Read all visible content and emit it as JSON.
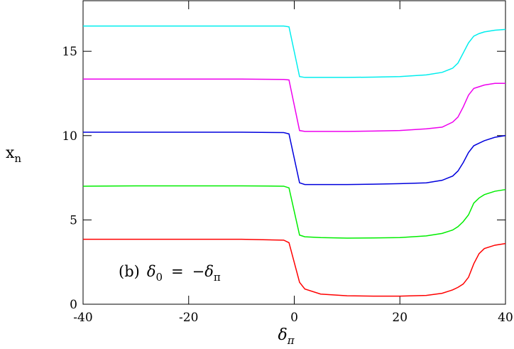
{
  "chart_data": {
    "type": "line",
    "xlabel": {
      "symbol": "δ",
      "subscript": "π"
    },
    "ylabel": {
      "symbol": "x",
      "subscript": "n"
    },
    "annotation": {
      "prefix": "(b)",
      "lhs": "δ",
      "lhs_sub": "0",
      "op": "=",
      "rhs": "−δ",
      "rhs_sub": "π"
    },
    "x": [
      -40,
      -30,
      -20,
      -10,
      -2,
      -1,
      1,
      2,
      5,
      10,
      15,
      20,
      25,
      28,
      30,
      31,
      32,
      33,
      34,
      35,
      36,
      38,
      40
    ],
    "series": [
      {
        "color": "#ff0000",
        "values": [
          3.85,
          3.85,
          3.85,
          3.85,
          3.8,
          3.65,
          1.3,
          0.9,
          0.6,
          0.5,
          0.48,
          0.48,
          0.52,
          0.65,
          0.85,
          1.0,
          1.2,
          1.6,
          2.4,
          3.0,
          3.3,
          3.5,
          3.6
        ]
      },
      {
        "color": "#00ee00",
        "values": [
          7.0,
          7.02,
          7.02,
          7.02,
          7.0,
          6.9,
          4.1,
          4.0,
          3.95,
          3.92,
          3.93,
          3.95,
          4.05,
          4.2,
          4.4,
          4.6,
          4.9,
          5.3,
          6.0,
          6.3,
          6.5,
          6.7,
          6.8
        ]
      },
      {
        "color": "#0000dd",
        "values": [
          10.2,
          10.2,
          10.2,
          10.2,
          10.18,
          10.1,
          7.2,
          7.1,
          7.1,
          7.1,
          7.12,
          7.15,
          7.2,
          7.35,
          7.6,
          7.9,
          8.4,
          9.0,
          9.4,
          9.55,
          9.7,
          9.9,
          10.0
        ]
      },
      {
        "color": "#ee00ee",
        "values": [
          13.35,
          13.35,
          13.35,
          13.35,
          13.33,
          13.3,
          10.3,
          10.25,
          10.25,
          10.25,
          10.27,
          10.3,
          10.4,
          10.5,
          10.8,
          11.1,
          11.7,
          12.4,
          12.8,
          12.9,
          13.0,
          13.1,
          13.1
        ]
      },
      {
        "color": "#00eeee",
        "values": [
          16.5,
          16.5,
          16.5,
          16.5,
          16.5,
          16.45,
          13.5,
          13.45,
          13.45,
          13.45,
          13.47,
          13.5,
          13.6,
          13.75,
          14.0,
          14.3,
          14.9,
          15.5,
          15.9,
          16.05,
          16.15,
          16.25,
          16.3
        ]
      }
    ],
    "xlim": [
      -40,
      40
    ],
    "xticks": [
      -40,
      -20,
      0,
      20,
      40
    ],
    "ylim": [
      0,
      18
    ],
    "yticks": [
      0,
      5,
      10,
      15
    ]
  }
}
